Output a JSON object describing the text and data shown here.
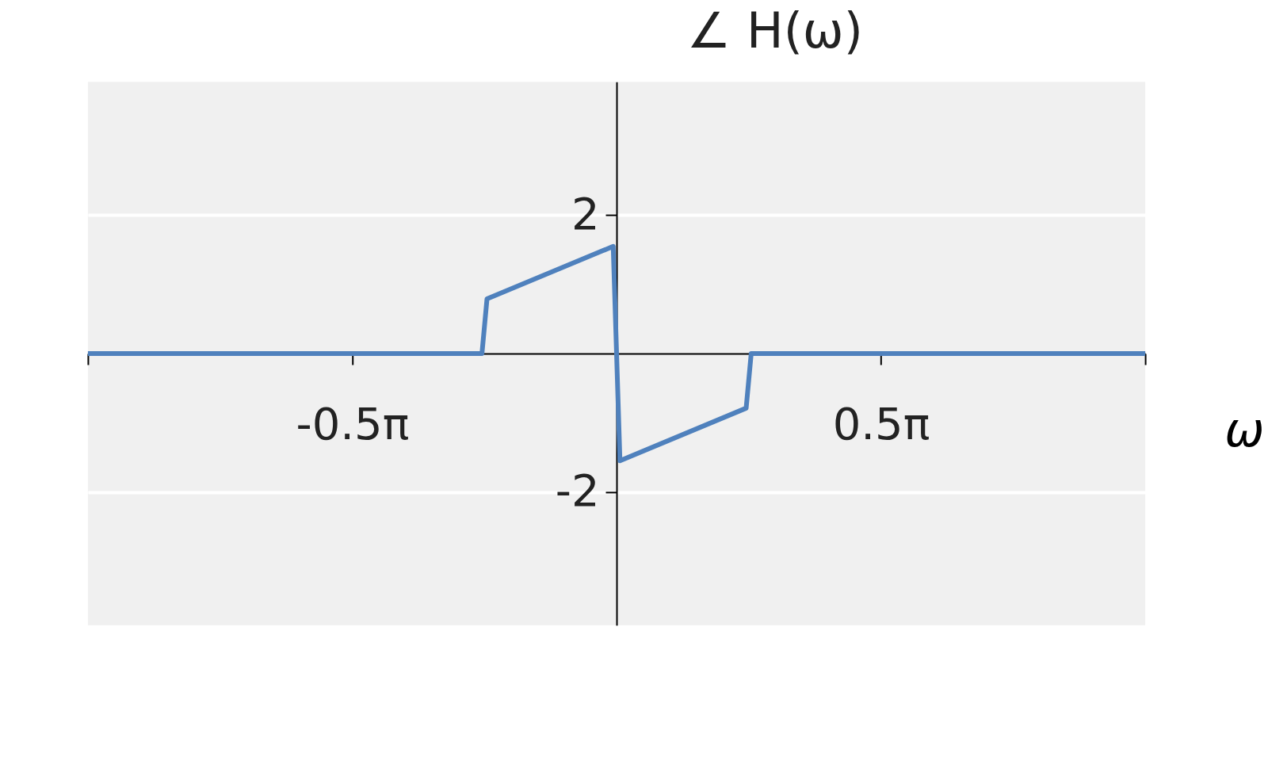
{
  "chart_data": {
    "type": "line",
    "title": "∠ H(ω)",
    "xlabel": "ω",
    "x": [
      -3.1416,
      -0.8,
      -0.77,
      -0.02,
      0.02,
      0.77,
      0.8,
      3.1416
    ],
    "series": [
      {
        "color": "#4f81bd",
        "values": [
          0,
          0,
          0.79,
          1.55,
          -1.55,
          -0.79,
          0,
          0
        ]
      }
    ],
    "xlim": [
      -3.1416,
      3.1416
    ],
    "xticks": [
      {
        "value": -3.1416,
        "label": null
      },
      {
        "value": -1.5708,
        "label": "-0.5π"
      },
      {
        "value": 1.5708,
        "label": "0.5π"
      },
      {
        "value": 3.1416,
        "label": null
      }
    ],
    "ylim": [
      -3.93,
      3.93
    ],
    "yticks": [
      -2,
      2
    ],
    "grid": "y",
    "marker": "none",
    "line_style": "solid"
  }
}
